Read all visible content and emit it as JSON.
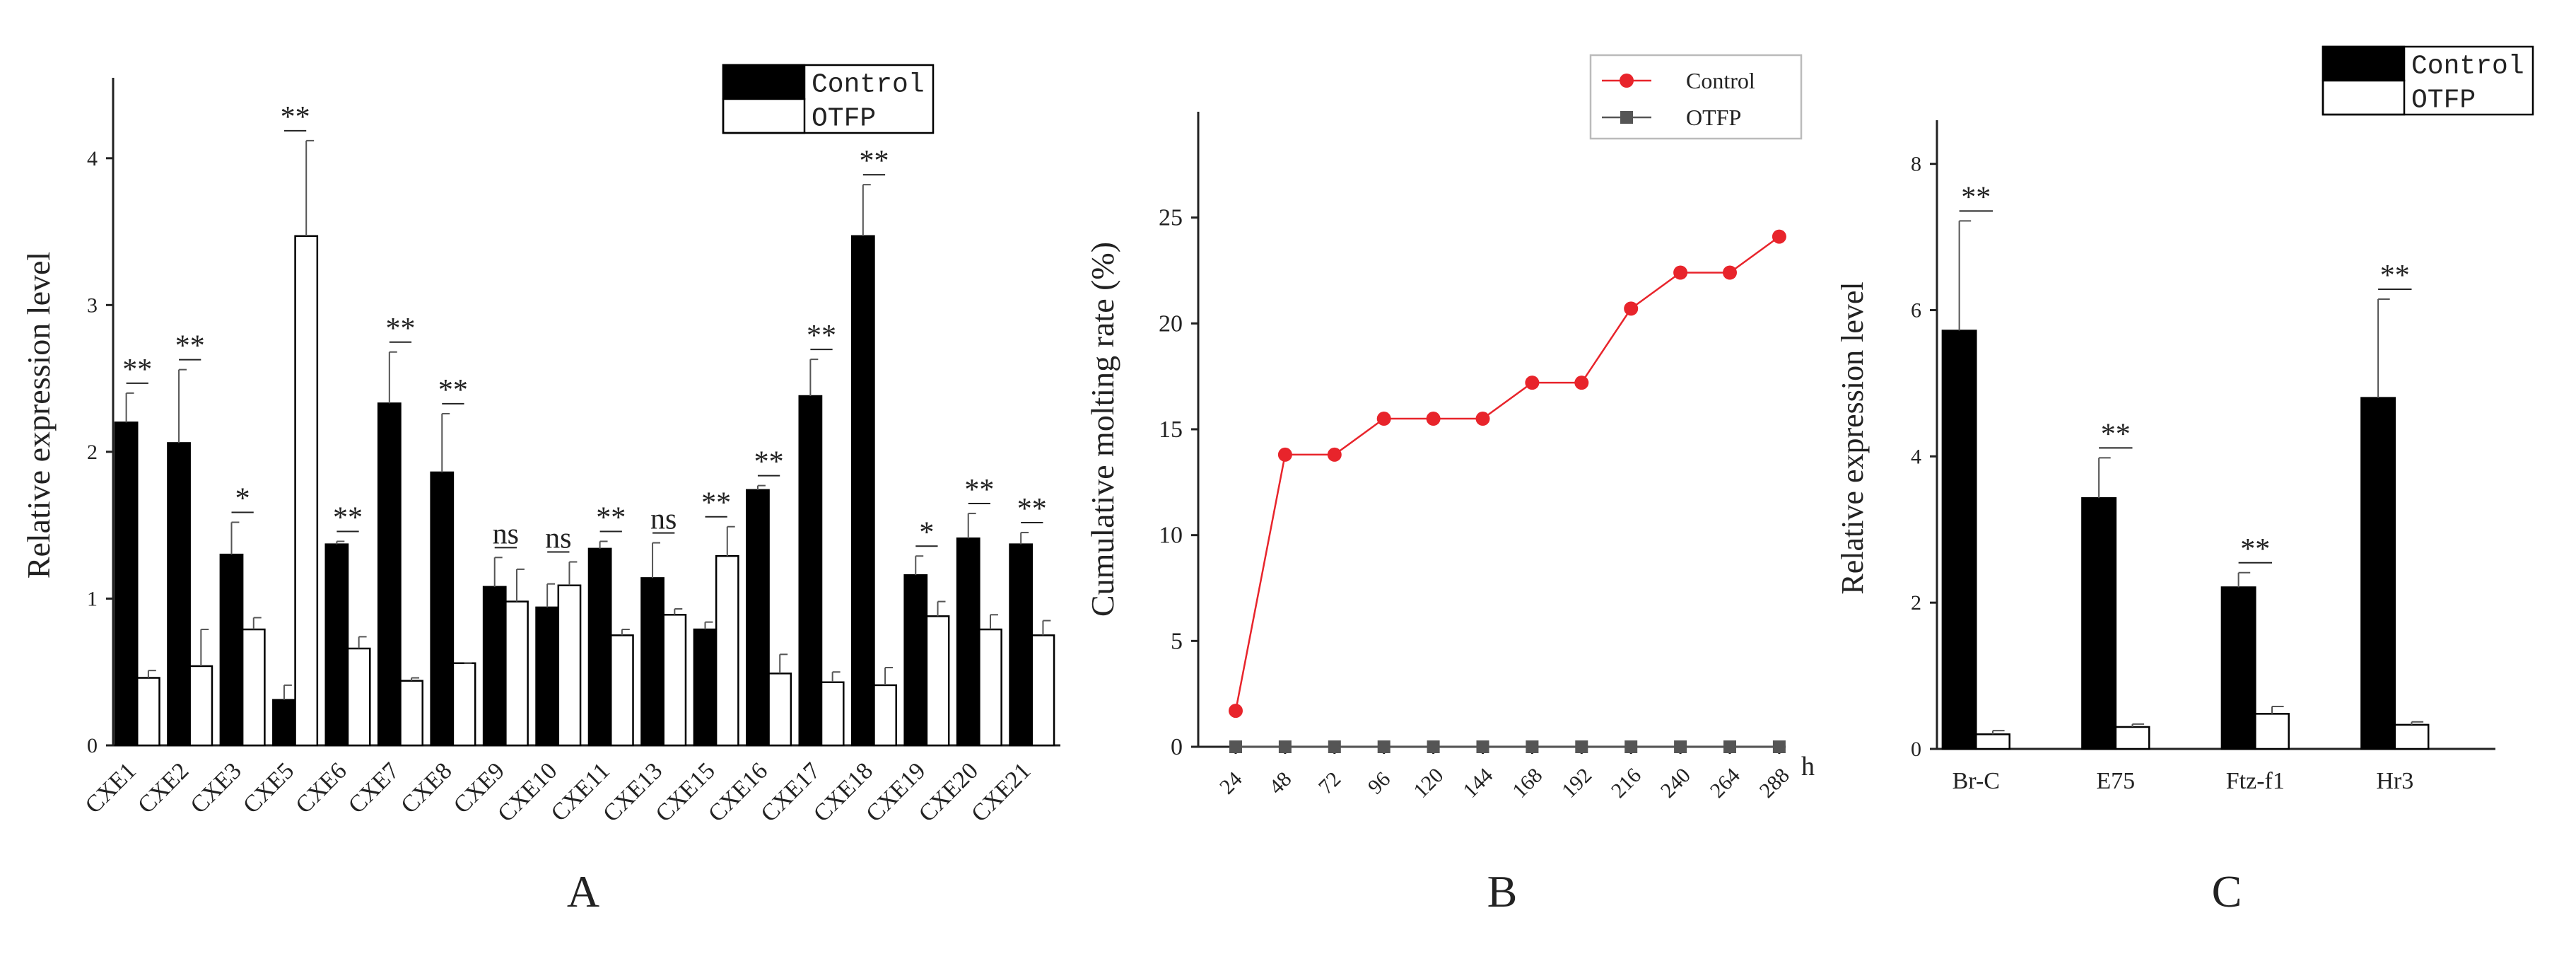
{
  "chart_data": [
    {
      "type": "bar",
      "panel_label": "A",
      "title": "",
      "xlabel": "",
      "ylabel": "Relative expression level",
      "ylim": [
        0,
        4.5
      ],
      "yticks": [
        "0",
        "1",
        "2",
        "3",
        "4"
      ],
      "categories": [
        "CXE1",
        "CXE2",
        "CXE3",
        "CXE5",
        "CXE6",
        "CXE7",
        "CXE8",
        "CXE9",
        "CXE10",
        "CXE11",
        "CXE13",
        "CXE15",
        "CXE16",
        "CXE17",
        "CXE18",
        "CXE19",
        "CXE20",
        "CXE21"
      ],
      "series": [
        {
          "name": "Control",
          "color": "#000000",
          "values": [
            2.2,
            2.06,
            1.3,
            0.31,
            1.37,
            2.33,
            1.86,
            1.08,
            0.94,
            1.34,
            1.14,
            0.79,
            1.74,
            2.38,
            3.47,
            1.16,
            1.41,
            1.37
          ],
          "errors": [
            0.2,
            0.5,
            0.22,
            0.1,
            0.02,
            0.35,
            0.4,
            0.2,
            0.16,
            0.05,
            0.24,
            0.05,
            0.03,
            0.25,
            0.35,
            0.13,
            0.17,
            0.08
          ]
        },
        {
          "name": "OTFP",
          "color": "#ffffff",
          "values": [
            0.46,
            0.54,
            0.79,
            3.47,
            0.66,
            0.44,
            0.56,
            0.98,
            1.09,
            0.75,
            0.89,
            1.29,
            0.49,
            0.43,
            0.41,
            0.88,
            0.79,
            0.75
          ],
          "errors": [
            0.05,
            0.25,
            0.08,
            0.65,
            0.08,
            0.02,
            0.0,
            0.22,
            0.16,
            0.04,
            0.04,
            0.2,
            0.13,
            0.07,
            0.12,
            0.1,
            0.1,
            0.1
          ]
        }
      ],
      "significance": [
        "**",
        "**",
        "*",
        "**",
        "**",
        "**",
        "**",
        "ns",
        "ns",
        "**",
        "ns",
        "**",
        "**",
        "**",
        "**",
        "*",
        "**",
        "**"
      ],
      "legend": {
        "entries": [
          "Control",
          "OTFP"
        ],
        "position": "top-right"
      }
    },
    {
      "type": "line",
      "panel_label": "B",
      "title": "",
      "xlabel": "h",
      "ylabel": "Cumulative molting rate (%)",
      "ylim": [
        0,
        30
      ],
      "yticks": [
        "0",
        "5",
        "10",
        "15",
        "20",
        "25"
      ],
      "x": [
        "24",
        "48",
        "72",
        "96",
        "120",
        "144",
        "168",
        "192",
        "216",
        "240",
        "264",
        "288"
      ],
      "series": [
        {
          "name": "Control",
          "color": "#e8242b",
          "marker": "circle",
          "values": [
            1.7,
            13.8,
            13.8,
            15.5,
            15.5,
            15.5,
            17.2,
            17.2,
            20.7,
            22.4,
            22.4,
            24.1
          ]
        },
        {
          "name": "OTFP",
          "color": "#555555",
          "marker": "square",
          "values": [
            0,
            0,
            0,
            0,
            0,
            0,
            0,
            0,
            0,
            0,
            0,
            0
          ]
        }
      ],
      "legend": {
        "entries": [
          "Control",
          "OTFP"
        ],
        "position": "top-right"
      }
    },
    {
      "type": "bar",
      "panel_label": "C",
      "title": "",
      "xlabel": "",
      "ylabel": "Relative expression level",
      "ylim": [
        0,
        8.5
      ],
      "yticks": [
        "0",
        "2",
        "4",
        "6",
        "8"
      ],
      "categories": [
        "Br-C",
        "E75",
        "Ftz-f1",
        "Hr3"
      ],
      "series": [
        {
          "name": "Control",
          "color": "#000000",
          "values": [
            5.72,
            3.43,
            2.21,
            4.8
          ],
          "errors": [
            1.5,
            0.55,
            0.2,
            1.35
          ]
        },
        {
          "name": "OTFP",
          "color": "#ffffff",
          "values": [
            0.2,
            0.3,
            0.48,
            0.33
          ],
          "errors": [
            0.05,
            0.04,
            0.1,
            0.04
          ]
        }
      ],
      "significance": [
        "**",
        "**",
        "**",
        "**"
      ],
      "legend": {
        "entries": [
          "Control",
          "OTFP"
        ],
        "position": "top-right"
      }
    }
  ]
}
